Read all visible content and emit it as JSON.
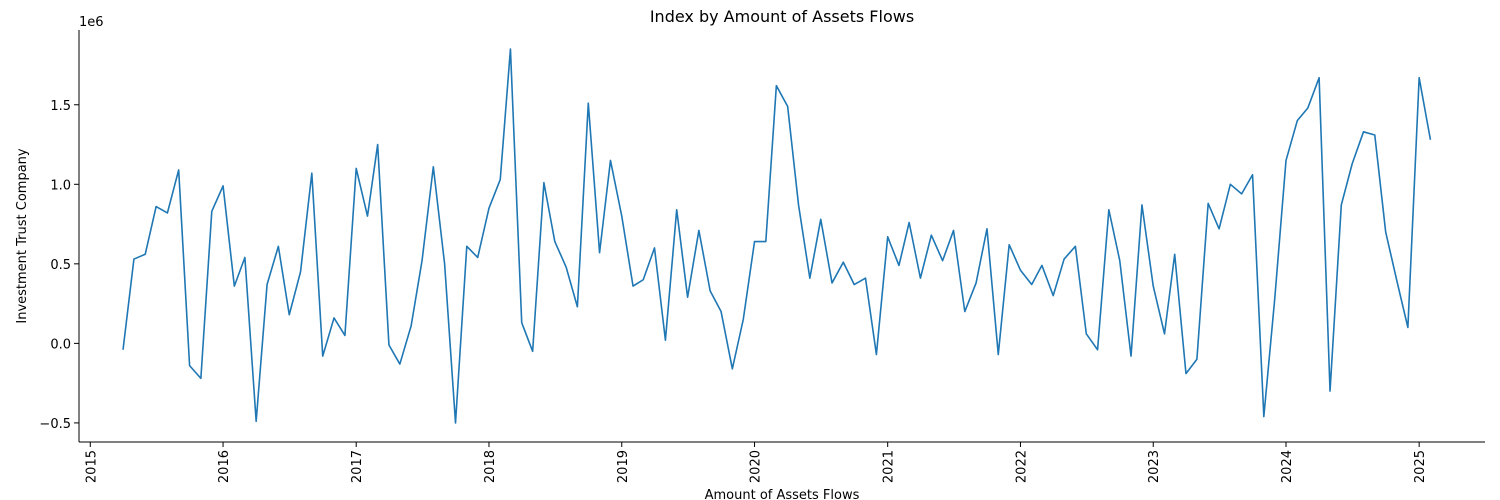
{
  "chart_data": {
    "type": "line",
    "title": "Index by Amount of Assets Flows",
    "xlabel": "Amount of Assets Flows",
    "ylabel": "Investment Trust Company",
    "y_offset_label": "1e6",
    "x_ticks": [
      "2015",
      "2016",
      "2017",
      "2018",
      "2019",
      "2020",
      "2021",
      "2022",
      "2023",
      "2024",
      "2025"
    ],
    "y_ticks": [
      "−0.5",
      "0.0",
      "0.5",
      "1.0",
      "1.5"
    ],
    "y_tick_values": [
      -0.5,
      0.0,
      0.5,
      1.0,
      1.5
    ],
    "xlim": [
      "2014-12-01",
      "2025-07-01"
    ],
    "ylim": [
      -0.62,
      1.97
    ],
    "grid": false,
    "series": [
      {
        "color": "#1f77b4",
        "x": [
          "2015-04-01",
          "2015-05-01",
          "2015-06-01",
          "2015-07-01",
          "2015-08-01",
          "2015-09-01",
          "2015-10-01",
          "2015-11-01",
          "2015-12-01",
          "2016-01-01",
          "2016-02-01",
          "2016-03-01",
          "2016-04-01",
          "2016-05-01",
          "2016-06-01",
          "2016-07-01",
          "2016-08-01",
          "2016-09-01",
          "2016-10-01",
          "2016-11-01",
          "2016-12-01",
          "2017-01-01",
          "2017-02-01",
          "2017-03-01",
          "2017-04-01",
          "2017-05-01",
          "2017-06-01",
          "2017-07-01",
          "2017-08-01",
          "2017-09-01",
          "2017-10-01",
          "2017-11-01",
          "2017-12-01",
          "2018-01-01",
          "2018-02-01",
          "2018-03-01",
          "2018-04-01",
          "2018-05-01",
          "2018-06-01",
          "2018-07-01",
          "2018-08-01",
          "2018-09-01",
          "2018-10-01",
          "2018-11-01",
          "2018-12-01",
          "2019-01-01",
          "2019-02-01",
          "2019-03-01",
          "2019-04-01",
          "2019-05-01",
          "2019-06-01",
          "2019-07-01",
          "2019-08-01",
          "2019-09-01",
          "2019-10-01",
          "2019-11-01",
          "2019-12-01",
          "2020-01-01",
          "2020-02-01",
          "2020-03-01",
          "2020-04-01",
          "2020-05-01",
          "2020-06-01",
          "2020-07-01",
          "2020-08-01",
          "2020-09-01",
          "2020-10-01",
          "2020-11-01",
          "2020-12-01",
          "2021-01-01",
          "2021-02-01",
          "2021-03-01",
          "2021-04-01",
          "2021-05-01",
          "2021-06-01",
          "2021-07-01",
          "2021-08-01",
          "2021-09-01",
          "2021-10-01",
          "2021-11-01",
          "2021-12-01",
          "2022-01-01",
          "2022-02-01",
          "2022-03-01",
          "2022-04-01",
          "2022-05-01",
          "2022-06-01",
          "2022-07-01",
          "2022-08-01",
          "2022-09-01",
          "2022-10-01",
          "2022-11-01",
          "2022-12-01",
          "2023-01-01",
          "2023-02-01",
          "2023-03-01",
          "2023-04-01",
          "2023-05-01",
          "2023-06-01",
          "2023-07-01",
          "2023-08-01",
          "2023-09-01",
          "2023-10-01",
          "2023-11-01",
          "2023-12-01",
          "2024-01-01",
          "2024-02-01",
          "2024-03-01",
          "2024-04-01",
          "2024-05-01",
          "2024-06-01",
          "2024-07-01",
          "2024-08-01",
          "2024-09-01",
          "2024-10-01",
          "2024-11-01",
          "2024-12-01",
          "2025-01-01",
          "2025-02-01"
        ],
        "y": [
          -0.04,
          0.53,
          0.56,
          0.86,
          0.82,
          1.09,
          -0.14,
          -0.22,
          0.83,
          0.99,
          0.36,
          0.54,
          -0.49,
          0.37,
          0.61,
          0.18,
          0.45,
          1.07,
          -0.08,
          0.16,
          0.05,
          1.1,
          0.8,
          1.25,
          -0.01,
          -0.13,
          0.11,
          0.52,
          1.11,
          0.5,
          -0.5,
          0.61,
          0.54,
          0.85,
          1.03,
          1.85,
          0.13,
          -0.05,
          1.01,
          0.64,
          0.48,
          0.23,
          1.51,
          0.57,
          1.15,
          0.8,
          0.36,
          0.4,
          0.6,
          0.02,
          0.84,
          0.29,
          0.71,
          0.33,
          0.2,
          -0.16,
          0.15,
          0.64,
          0.64,
          1.62,
          1.49,
          0.87,
          0.41,
          0.78,
          0.38,
          0.51,
          0.37,
          0.41,
          -0.07,
          0.67,
          0.49,
          0.76,
          0.41,
          0.68,
          0.52,
          0.71,
          0.2,
          0.38,
          0.72,
          -0.07,
          0.62,
          0.46,
          0.37,
          0.49,
          0.3,
          0.53,
          0.61,
          0.06,
          -0.04,
          0.84,
          0.52,
          -0.08,
          0.87,
          0.36,
          0.06,
          0.56,
          -0.19,
          -0.1,
          0.88,
          0.72,
          1.0,
          0.94,
          1.06,
          -0.46,
          0.28,
          1.15,
          1.4,
          1.48,
          1.67,
          -0.3,
          0.87,
          1.13,
          1.33,
          1.31,
          0.7,
          0.39,
          0.1,
          1.67,
          1.28
        ]
      }
    ]
  }
}
